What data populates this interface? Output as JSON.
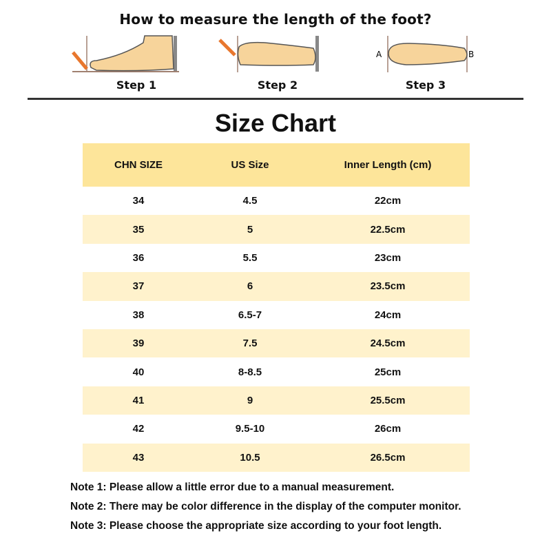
{
  "heading": "How to measure the length of the foot?",
  "steps": [
    {
      "label": "Step 1"
    },
    {
      "label": "Step 2"
    },
    {
      "label": "Step 3",
      "point_a": "A",
      "point_b": "B"
    }
  ],
  "title": "Size Chart",
  "table": {
    "headers": [
      "CHN SIZE",
      "US Size",
      "Inner Length  (cm)"
    ],
    "rows": [
      [
        "34",
        "4.5",
        "22cm"
      ],
      [
        "35",
        "5",
        "22.5cm"
      ],
      [
        "36",
        "5.5",
        "23cm"
      ],
      [
        "37",
        "6",
        "23.5cm"
      ],
      [
        "38",
        "6.5-7",
        "24cm"
      ],
      [
        "39",
        "7.5",
        "24.5cm"
      ],
      [
        "40",
        "8-8.5",
        "25cm"
      ],
      [
        "41",
        "9",
        "25.5cm"
      ],
      [
        "42",
        "9.5-10",
        "26cm"
      ],
      [
        "43",
        "10.5",
        "26.5cm"
      ]
    ]
  },
  "notes": [
    "Note 1: Please allow a little error due to a manual measurement.",
    "Note 2: There may be color difference in the display of the computer monitor.",
    "Note 3: Please choose the appropriate size according to your foot length."
  ],
  "colors": {
    "header_bg": "#fde59a",
    "alt_row_bg": "#fff2cc",
    "foot": "#f7d49b",
    "pencil": "#e8772e"
  }
}
